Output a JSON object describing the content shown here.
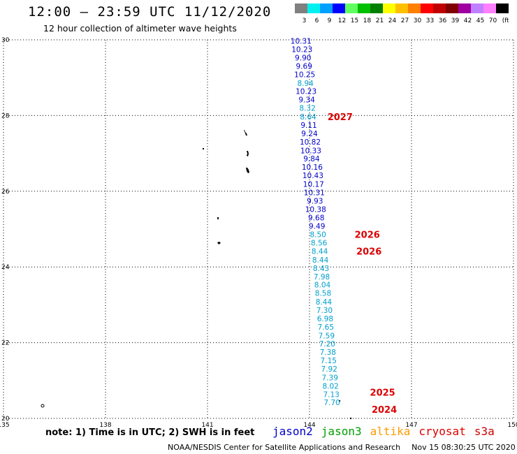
{
  "title": "12:00 – 23:59 UTC 11/12/2020",
  "subtitle": "12 hour collection of altimeter wave heights",
  "legend": {
    "colors": [
      "#808080",
      "#00f0f0",
      "#00a0ff",
      "#0000ff",
      "#60ff60",
      "#00c000",
      "#008000",
      "#ffff00",
      "#ffc000",
      "#ff8000",
      "#ff0000",
      "#c00000",
      "#800000",
      "#a000a0",
      "#c080ff",
      "#ff80ff",
      "#000000"
    ],
    "labels": [
      "3",
      "6",
      "9",
      "12",
      "15",
      "18",
      "21",
      "24",
      "27",
      "30",
      "33",
      "36",
      "39",
      "42",
      "45",
      "70",
      "(ft)"
    ]
  },
  "note": "note:  1)  Time is in UTC;  2)  SWH is in feet",
  "satellites": [
    {
      "name": "jason2",
      "color": "#0000cc"
    },
    {
      "name": "jason3",
      "color": "#00a000"
    },
    {
      "name": "altika",
      "color": "#ff9900"
    },
    {
      "name": "cryosat",
      "color": "#dd0000"
    },
    {
      "name": "s3a",
      "color": "#cc0000"
    }
  ],
  "credit": "NOAA/NESDIS Center for Satellite Applications and Research",
  "timestamp": "Nov 15 08:30:25 UTC 2020",
  "chart_data": {
    "type": "scatter",
    "xlim": [
      135,
      150
    ],
    "ylim": [
      20,
      30
    ],
    "xticks": [
      "135",
      "138",
      "141",
      "144",
      "147",
      "150"
    ],
    "yticks": [
      "20",
      "22",
      "24",
      "26",
      "28",
      "30"
    ],
    "grid": true,
    "points": [
      {
        "x": 143.75,
        "y": 29.97,
        "value": "10.31",
        "color": "#0000cc"
      },
      {
        "x": 143.78,
        "y": 29.75,
        "value": "10.23",
        "color": "#0000cc"
      },
      {
        "x": 143.81,
        "y": 29.53,
        "value": "9.90",
        "color": "#0000cc"
      },
      {
        "x": 143.84,
        "y": 29.31,
        "value": "9.69",
        "color": "#0000cc"
      },
      {
        "x": 143.86,
        "y": 29.09,
        "value": "10.25",
        "color": "#0000cc"
      },
      {
        "x": 143.88,
        "y": 28.86,
        "value": "8.94",
        "color": "#00a0cc"
      },
      {
        "x": 143.9,
        "y": 28.64,
        "value": "10.23",
        "color": "#0000cc"
      },
      {
        "x": 143.92,
        "y": 28.42,
        "value": "9.34",
        "color": "#0000cc"
      },
      {
        "x": 143.94,
        "y": 28.2,
        "value": "8.32",
        "color": "#00a0cc"
      },
      {
        "x": 143.96,
        "y": 27.97,
        "value": "8.64",
        "color": "#00a0cc"
      },
      {
        "x": 143.98,
        "y": 27.75,
        "value": "9.11",
        "color": "#0000cc"
      },
      {
        "x": 144.0,
        "y": 27.53,
        "value": "9.24",
        "color": "#0000cc"
      },
      {
        "x": 144.02,
        "y": 27.31,
        "value": "10.82",
        "color": "#0000cc"
      },
      {
        "x": 144.04,
        "y": 27.08,
        "value": "10.33",
        "color": "#0000cc"
      },
      {
        "x": 144.06,
        "y": 26.86,
        "value": "9.84",
        "color": "#0000cc"
      },
      {
        "x": 144.08,
        "y": 26.64,
        "value": "10.16",
        "color": "#0000cc"
      },
      {
        "x": 144.1,
        "y": 26.42,
        "value": "10.43",
        "color": "#0000cc"
      },
      {
        "x": 144.12,
        "y": 26.19,
        "value": "10.17",
        "color": "#0000cc"
      },
      {
        "x": 144.14,
        "y": 25.97,
        "value": "10.31",
        "color": "#0000cc"
      },
      {
        "x": 144.16,
        "y": 25.75,
        "value": "9.93",
        "color": "#0000cc"
      },
      {
        "x": 144.18,
        "y": 25.53,
        "value": "10.38",
        "color": "#0000cc"
      },
      {
        "x": 144.2,
        "y": 25.3,
        "value": "9.68",
        "color": "#0000cc"
      },
      {
        "x": 144.22,
        "y": 25.08,
        "value": "9.49",
        "color": "#0000cc"
      },
      {
        "x": 144.25,
        "y": 24.86,
        "value": "8.50",
        "color": "#00a0cc"
      },
      {
        "x": 144.28,
        "y": 24.64,
        "value": "8.56",
        "color": "#00a0cc"
      },
      {
        "x": 144.3,
        "y": 24.42,
        "value": "8.44",
        "color": "#00a0cc"
      },
      {
        "x": 144.32,
        "y": 24.19,
        "value": "8.44",
        "color": "#00a0cc"
      },
      {
        "x": 144.34,
        "y": 23.97,
        "value": "8.43",
        "color": "#00a0cc"
      },
      {
        "x": 144.36,
        "y": 23.75,
        "value": "7.98",
        "color": "#00a0cc"
      },
      {
        "x": 144.38,
        "y": 23.53,
        "value": "8.04",
        "color": "#00a0cc"
      },
      {
        "x": 144.4,
        "y": 23.31,
        "value": "8.58",
        "color": "#00a0cc"
      },
      {
        "x": 144.42,
        "y": 23.08,
        "value": "8.44",
        "color": "#00a0cc"
      },
      {
        "x": 144.44,
        "y": 22.86,
        "value": "7.30",
        "color": "#00a0cc"
      },
      {
        "x": 144.46,
        "y": 22.64,
        "value": "6.98",
        "color": "#00a0cc"
      },
      {
        "x": 144.48,
        "y": 22.42,
        "value": "7.65",
        "color": "#00a0cc"
      },
      {
        "x": 144.5,
        "y": 22.19,
        "value": "7.59",
        "color": "#00a0cc"
      },
      {
        "x": 144.52,
        "y": 21.97,
        "value": "7.20",
        "color": "#00a0cc"
      },
      {
        "x": 144.54,
        "y": 21.75,
        "value": "7.38",
        "color": "#00a0cc"
      },
      {
        "x": 144.56,
        "y": 21.53,
        "value": "7.15",
        "color": "#00a0cc"
      },
      {
        "x": 144.58,
        "y": 21.31,
        "value": "7.92",
        "color": "#00a0cc"
      },
      {
        "x": 144.6,
        "y": 21.08,
        "value": "7.39",
        "color": "#00a0cc"
      },
      {
        "x": 144.62,
        "y": 20.86,
        "value": "8.02",
        "color": "#00a0cc"
      },
      {
        "x": 144.64,
        "y": 20.64,
        "value": "7.13",
        "color": "#00a0cc"
      },
      {
        "x": 144.66,
        "y": 20.42,
        "value": "7.70",
        "color": "#00a0cc"
      }
    ],
    "annotations": [
      {
        "x": 144.9,
        "y": 27.97,
        "text": "2027",
        "color": "#dd0000"
      },
      {
        "x": 145.7,
        "y": 24.86,
        "text": "2026",
        "color": "#dd0000"
      },
      {
        "x": 145.75,
        "y": 24.42,
        "text": "2026",
        "color": "#dd0000"
      },
      {
        "x": 146.15,
        "y": 20.69,
        "text": "2025",
        "color": "#dd0000"
      },
      {
        "x": 146.2,
        "y": 20.24,
        "text": "2024",
        "color": "#dd0000"
      }
    ]
  }
}
